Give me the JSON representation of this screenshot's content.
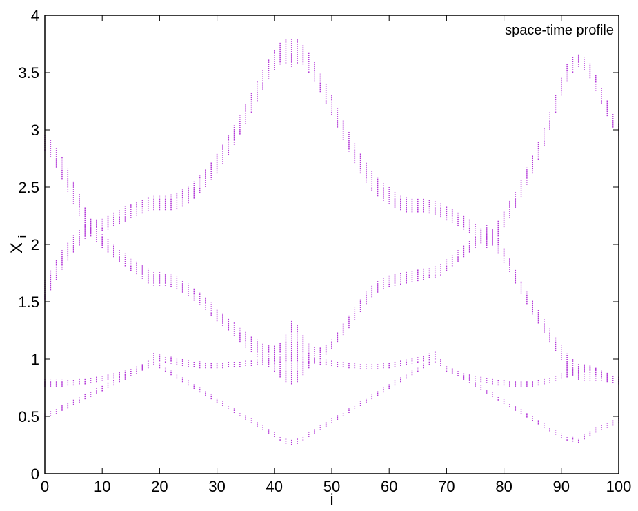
{
  "chart_data": {
    "type": "scatter",
    "title": "",
    "legend_text": "space-time profile",
    "legend_position": "top-right",
    "xlabel": "i",
    "ylabel": "X",
    "ylabel_subscript": "i",
    "xlim": [
      0,
      100
    ],
    "ylim": [
      0,
      4
    ],
    "xticks": [
      0,
      10,
      20,
      30,
      40,
      50,
      60,
      70,
      80,
      90,
      100
    ],
    "xtick_labels": [
      "0",
      "10",
      "20",
      "30",
      "40",
      "50",
      "60",
      "70",
      "80",
      "90",
      "100"
    ],
    "yticks": [
      0,
      0.5,
      1,
      1.5,
      2,
      2.5,
      3,
      3.5,
      4
    ],
    "ytick_labels": [
      "0",
      "0.5",
      "1",
      "1.5",
      "2",
      "2.5",
      "3",
      "3.5",
      "4"
    ],
    "grid": false,
    "marker_color": "#b43cd8",
    "x": [
      0,
      1,
      2,
      3,
      4,
      5,
      6,
      7,
      8,
      9,
      10,
      11,
      12,
      13,
      14,
      15,
      16,
      17,
      18,
      19,
      20,
      21,
      22,
      23,
      24,
      25,
      26,
      27,
      28,
      29,
      30,
      31,
      32,
      33,
      34,
      35,
      36,
      37,
      38,
      39,
      40,
      41,
      42,
      43,
      44,
      45,
      46,
      47,
      48,
      49,
      50,
      51,
      52,
      53,
      54,
      55,
      56,
      57,
      58,
      59,
      60,
      61,
      62,
      63,
      64,
      65,
      66,
      67,
      68,
      69,
      70,
      71,
      72,
      73,
      74,
      75,
      76,
      77,
      78,
      79,
      80,
      81,
      82,
      83,
      84,
      85,
      86,
      87,
      88,
      89,
      90,
      91,
      92,
      93,
      94,
      95,
      96,
      97,
      98,
      99,
      100
    ],
    "series": [
      {
        "low": [
          2.82,
          2.76,
          2.67,
          2.57,
          2.46,
          2.35,
          2.25,
          2.15,
          2.07,
          2.02,
          1.97,
          1.93,
          1.89,
          1.85,
          1.81,
          1.77,
          1.74,
          1.7,
          1.66,
          1.64,
          1.64,
          1.64,
          1.63,
          1.61,
          1.58,
          1.55,
          1.51,
          1.47,
          1.43,
          1.38,
          1.33,
          1.29,
          1.25,
          1.2,
          1.15,
          1.1,
          1.06,
          1.02,
          0.98,
          0.93,
          0.89,
          0.84,
          0.8,
          0.78,
          0.8,
          0.86,
          0.92,
          0.97,
          1.0,
          1.04,
          1.09,
          1.15,
          1.21,
          1.27,
          1.34,
          1.41,
          1.48,
          1.54,
          1.58,
          1.61,
          1.63,
          1.64,
          1.65,
          1.66,
          1.67,
          1.68,
          1.69,
          1.71,
          1.71,
          1.73,
          1.77,
          1.81,
          1.85,
          1.89,
          1.93,
          1.97,
          2.01,
          2.05,
          2.0,
          1.92,
          1.84,
          1.76,
          1.66,
          1.57,
          1.48,
          1.39,
          1.31,
          1.23,
          1.15,
          1.07,
          0.99,
          0.9,
          0.85,
          0.82,
          0.81,
          0.81,
          0.81,
          0.81,
          0.8,
          0.79,
          0.8
        ],
        "high": [
          2.96,
          2.91,
          2.84,
          2.76,
          2.66,
          2.55,
          2.44,
          2.33,
          2.23,
          2.16,
          2.1,
          2.05,
          2.0,
          1.96,
          1.92,
          1.88,
          1.85,
          1.82,
          1.79,
          1.77,
          1.76,
          1.75,
          1.74,
          1.72,
          1.69,
          1.66,
          1.62,
          1.58,
          1.54,
          1.49,
          1.44,
          1.4,
          1.36,
          1.32,
          1.28,
          1.24,
          1.2,
          1.17,
          1.14,
          1.12,
          1.12,
          1.14,
          1.22,
          1.34,
          1.3,
          1.21,
          1.14,
          1.11,
          1.1,
          1.12,
          1.17,
          1.24,
          1.31,
          1.38,
          1.45,
          1.52,
          1.59,
          1.65,
          1.69,
          1.71,
          1.73,
          1.74,
          1.75,
          1.76,
          1.77,
          1.78,
          1.79,
          1.8,
          1.81,
          1.83,
          1.87,
          1.91,
          1.95,
          1.99,
          2.03,
          2.08,
          2.13,
          2.18,
          2.14,
          2.06,
          1.97,
          1.88,
          1.78,
          1.68,
          1.59,
          1.51,
          1.43,
          1.35,
          1.27,
          1.19,
          1.12,
          1.05,
          1.0,
          0.97,
          0.95,
          0.93,
          0.92,
          0.9,
          0.88,
          0.86,
          0.85
        ]
      },
      {
        "low": [
          1.52,
          1.6,
          1.69,
          1.78,
          1.86,
          1.93,
          1.99,
          2.05,
          2.1,
          2.11,
          2.12,
          2.13,
          2.16,
          2.18,
          2.2,
          2.23,
          2.25,
          2.27,
          2.29,
          2.3,
          2.3,
          2.3,
          2.3,
          2.31,
          2.33,
          2.36,
          2.4,
          2.45,
          2.5,
          2.56,
          2.62,
          2.7,
          2.78,
          2.87,
          2.96,
          3.05,
          3.15,
          3.25,
          3.35,
          3.44,
          3.52,
          3.57,
          3.58,
          3.55,
          3.58,
          3.57,
          3.5,
          3.42,
          3.33,
          3.23,
          3.13,
          3.02,
          2.91,
          2.81,
          2.71,
          2.62,
          2.54,
          2.47,
          2.42,
          2.38,
          2.35,
          2.32,
          2.3,
          2.28,
          2.28,
          2.28,
          2.28,
          2.27,
          2.26,
          2.24,
          2.21,
          2.19,
          2.16,
          2.13,
          2.1,
          2.06,
          2.01,
          1.97,
          1.99,
          2.07,
          2.15,
          2.23,
          2.32,
          2.41,
          2.52,
          2.62,
          2.74,
          2.86,
          3.0,
          3.15,
          3.3,
          3.42,
          3.5,
          3.55,
          3.52,
          3.45,
          3.34,
          3.23,
          3.12,
          3.02,
          2.95
        ],
        "high": [
          1.7,
          1.78,
          1.87,
          1.95,
          2.02,
          2.08,
          2.13,
          2.18,
          2.21,
          2.22,
          2.23,
          2.25,
          2.28,
          2.3,
          2.33,
          2.35,
          2.37,
          2.39,
          2.41,
          2.43,
          2.43,
          2.43,
          2.44,
          2.45,
          2.48,
          2.51,
          2.55,
          2.6,
          2.66,
          2.72,
          2.79,
          2.87,
          2.95,
          3.04,
          3.13,
          3.23,
          3.33,
          3.43,
          3.53,
          3.62,
          3.7,
          3.76,
          3.79,
          3.8,
          3.79,
          3.74,
          3.67,
          3.59,
          3.5,
          3.41,
          3.31,
          3.2,
          3.09,
          2.99,
          2.89,
          2.8,
          2.72,
          2.65,
          2.59,
          2.54,
          2.5,
          2.46,
          2.43,
          2.41,
          2.4,
          2.4,
          2.4,
          2.39,
          2.38,
          2.36,
          2.33,
          2.31,
          2.28,
          2.25,
          2.22,
          2.18,
          2.14,
          2.1,
          2.13,
          2.21,
          2.29,
          2.38,
          2.47,
          2.56,
          2.67,
          2.78,
          2.9,
          3.02,
          3.16,
          3.31,
          3.46,
          3.58,
          3.64,
          3.66,
          3.63,
          3.58,
          3.48,
          3.37,
          3.26,
          3.15,
          3.06
        ]
      },
      {
        "low": [
          0.76,
          0.76,
          0.76,
          0.76,
          0.77,
          0.77,
          0.78,
          0.78,
          0.79,
          0.8,
          0.81,
          0.82,
          0.83,
          0.84,
          0.86,
          0.87,
          0.89,
          0.91,
          0.94,
          0.99,
          0.98,
          0.97,
          0.96,
          0.95,
          0.94,
          0.93,
          0.93,
          0.92,
          0.92,
          0.92,
          0.92,
          0.92,
          0.93,
          0.93,
          0.93,
          0.94,
          0.94,
          0.95,
          0.95,
          0.96,
          0.96,
          0.97,
          0.98,
          0.98,
          0.98,
          0.97,
          0.97,
          0.96,
          0.95,
          0.95,
          0.94,
          0.93,
          0.93,
          0.92,
          0.92,
          0.91,
          0.91,
          0.91,
          0.91,
          0.92,
          0.92,
          0.93,
          0.94,
          0.95,
          0.96,
          0.97,
          0.98,
          0.99,
          1.0,
          0.94,
          0.89,
          0.87,
          0.85,
          0.83,
          0.82,
          0.81,
          0.8,
          0.79,
          0.78,
          0.77,
          0.77,
          0.76,
          0.76,
          0.76,
          0.76,
          0.76,
          0.77,
          0.78,
          0.79,
          0.81,
          0.83,
          0.84,
          0.86,
          0.88,
          0.89,
          0.88,
          0.86,
          0.84,
          0.81,
          0.79,
          0.78
        ],
        "high": [
          0.83,
          0.82,
          0.82,
          0.82,
          0.82,
          0.82,
          0.83,
          0.83,
          0.84,
          0.85,
          0.86,
          0.87,
          0.88,
          0.89,
          0.9,
          0.92,
          0.94,
          0.96,
          0.99,
          1.06,
          1.04,
          1.03,
          1.02,
          1.01,
          1.0,
          0.99,
          0.98,
          0.98,
          0.97,
          0.97,
          0.97,
          0.97,
          0.98,
          0.98,
          0.98,
          0.99,
          0.99,
          1.0,
          1.0,
          1.01,
          1.02,
          1.03,
          1.04,
          1.04,
          1.04,
          1.03,
          1.02,
          1.01,
          1.0,
          1.0,
          0.99,
          0.98,
          0.98,
          0.97,
          0.97,
          0.96,
          0.96,
          0.96,
          0.96,
          0.97,
          0.97,
          0.98,
          0.99,
          1.0,
          1.01,
          1.02,
          1.03,
          1.05,
          1.07,
          1.0,
          0.94,
          0.92,
          0.9,
          0.88,
          0.87,
          0.86,
          0.85,
          0.84,
          0.83,
          0.82,
          0.82,
          0.81,
          0.81,
          0.81,
          0.81,
          0.81,
          0.82,
          0.83,
          0.84,
          0.86,
          0.88,
          0.9,
          0.92,
          0.94,
          0.96,
          0.95,
          0.93,
          0.9,
          0.87,
          0.84,
          0.83
        ]
      },
      {
        "low": [
          0.48,
          0.5,
          0.52,
          0.55,
          0.57,
          0.6,
          0.62,
          0.65,
          0.67,
          0.7,
          0.72,
          0.75,
          0.77,
          0.8,
          0.82,
          0.85,
          0.87,
          0.9,
          0.92,
          0.95,
          0.92,
          0.89,
          0.86,
          0.83,
          0.8,
          0.77,
          0.74,
          0.71,
          0.68,
          0.65,
          0.62,
          0.59,
          0.56,
          0.53,
          0.5,
          0.47,
          0.44,
          0.41,
          0.38,
          0.35,
          0.32,
          0.29,
          0.26,
          0.25,
          0.26,
          0.29,
          0.32,
          0.35,
          0.38,
          0.41,
          0.44,
          0.47,
          0.5,
          0.53,
          0.56,
          0.59,
          0.62,
          0.65,
          0.68,
          0.71,
          0.74,
          0.77,
          0.8,
          0.83,
          0.86,
          0.89,
          0.92,
          0.95,
          0.97,
          0.94,
          0.91,
          0.88,
          0.85,
          0.82,
          0.79,
          0.76,
          0.73,
          0.7,
          0.67,
          0.64,
          0.61,
          0.58,
          0.55,
          0.52,
          0.49,
          0.46,
          0.43,
          0.4,
          0.37,
          0.34,
          0.31,
          0.29,
          0.28,
          0.27,
          0.3,
          0.33,
          0.36,
          0.38,
          0.4,
          0.42,
          0.44
        ],
        "high": [
          0.53,
          0.55,
          0.57,
          0.6,
          0.62,
          0.65,
          0.67,
          0.7,
          0.72,
          0.75,
          0.77,
          0.8,
          0.82,
          0.85,
          0.87,
          0.9,
          0.92,
          0.95,
          0.97,
          0.99,
          0.96,
          0.93,
          0.9,
          0.87,
          0.84,
          0.81,
          0.78,
          0.75,
          0.72,
          0.69,
          0.66,
          0.63,
          0.6,
          0.57,
          0.54,
          0.51,
          0.48,
          0.45,
          0.42,
          0.39,
          0.36,
          0.33,
          0.31,
          0.3,
          0.31,
          0.33,
          0.36,
          0.39,
          0.42,
          0.45,
          0.48,
          0.51,
          0.54,
          0.57,
          0.6,
          0.63,
          0.66,
          0.69,
          0.72,
          0.75,
          0.78,
          0.81,
          0.84,
          0.87,
          0.9,
          0.93,
          0.96,
          0.99,
          1.01,
          0.98,
          0.95,
          0.92,
          0.89,
          0.86,
          0.83,
          0.8,
          0.77,
          0.74,
          0.71,
          0.68,
          0.65,
          0.62,
          0.59,
          0.56,
          0.53,
          0.5,
          0.47,
          0.44,
          0.41,
          0.38,
          0.35,
          0.33,
          0.32,
          0.31,
          0.34,
          0.37,
          0.4,
          0.43,
          0.45,
          0.47,
          0.49
        ]
      }
    ]
  }
}
